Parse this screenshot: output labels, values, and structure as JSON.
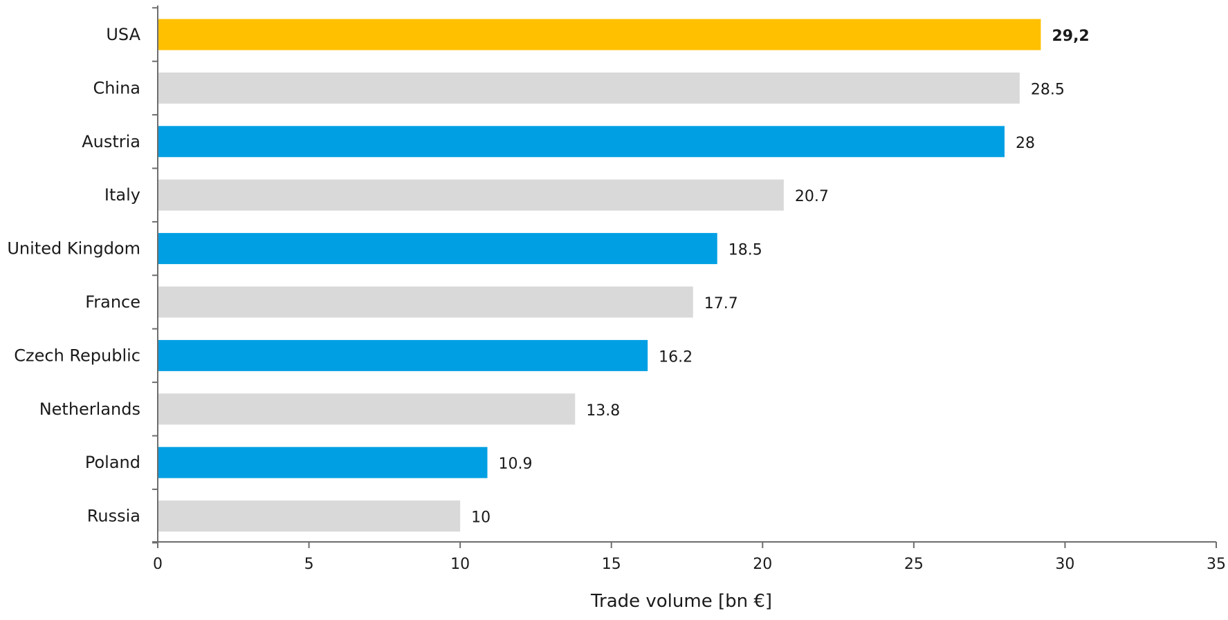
{
  "chart_data": {
    "type": "bar",
    "orientation": "horizontal",
    "categories": [
      "USA",
      "China",
      "Austria",
      "Italy",
      "United Kingdom",
      "France",
      "Czech Republic",
      "Netherlands",
      "Poland",
      "Russia"
    ],
    "values": [
      29.2,
      28.5,
      28,
      20.7,
      18.5,
      17.7,
      16.2,
      13.8,
      10.9,
      10
    ],
    "value_labels": [
      "29,2",
      "28.5",
      "28",
      "20.7",
      "18.5",
      "17.7",
      "16.2",
      "13.8",
      "10.9",
      "10"
    ],
    "bar_colors": [
      "#FFC000",
      "#D9D9D9",
      "#009FE3",
      "#D9D9D9",
      "#009FE3",
      "#D9D9D9",
      "#009FE3",
      "#D9D9D9",
      "#009FE3",
      "#D9D9D9"
    ],
    "highlight_index": 0,
    "xlabel": "Trade volume [bn €]",
    "ylabel": "",
    "title": "",
    "xlim": [
      0,
      35
    ],
    "xticks": [
      0,
      5,
      10,
      15,
      20,
      25,
      30,
      35
    ],
    "grid": false,
    "legend": "none"
  }
}
